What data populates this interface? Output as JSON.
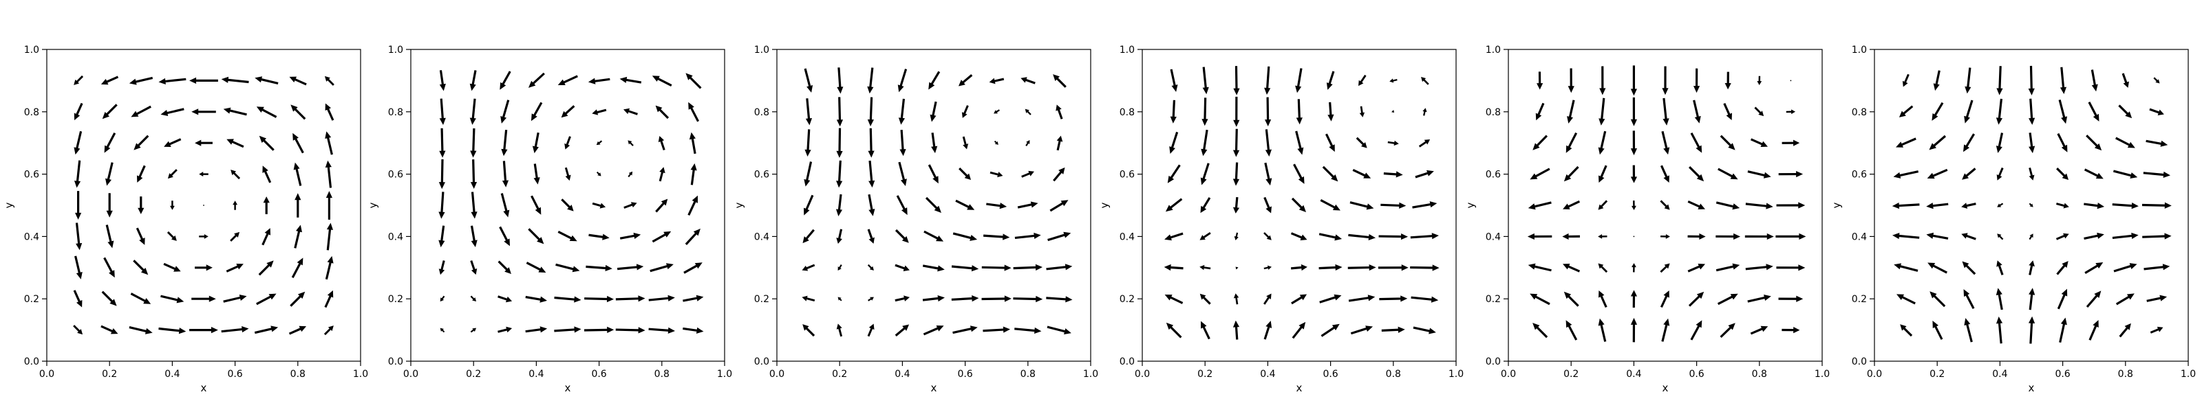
{
  "figure": {
    "background": "#ffffff",
    "axes_color": "#000000",
    "arrow_color": "#000000"
  },
  "chart_data": [
    {
      "type": "quiver",
      "panel": 1,
      "title": "",
      "xlabel": "x",
      "ylabel": "y",
      "xlim": [
        0.0,
        1.0
      ],
      "ylim": [
        0.0,
        1.0
      ],
      "xticks": [
        "0.0",
        "0.2",
        "0.4",
        "0.6",
        "0.8",
        "1.0"
      ],
      "yticks": [
        "0.0",
        "0.2",
        "0.4",
        "0.6",
        "0.8",
        "1.0"
      ],
      "grid": false,
      "legend": "none",
      "x": [
        0.1,
        0.2,
        0.3,
        0.4,
        0.5,
        0.6,
        0.7,
        0.8,
        0.9
      ],
      "y": [
        0.1,
        0.2,
        0.3,
        0.4,
        0.5,
        0.6,
        0.7,
        0.8,
        0.9
      ],
      "vector_field": {
        "u": "sin(pi*x)*cos(pi*y)",
        "v": "-cos(pi*x)*sin(pi*y)",
        "phase": 0.0
      }
    },
    {
      "type": "quiver",
      "panel": 2,
      "title": "",
      "xlabel": "x",
      "ylabel": "y",
      "xlim": [
        0.0,
        1.0
      ],
      "ylim": [
        0.0,
        1.0
      ],
      "xticks": [
        "0.0",
        "0.2",
        "0.4",
        "0.6",
        "0.8",
        "1.0"
      ],
      "yticks": [
        "0.0",
        "0.2",
        "0.4",
        "0.6",
        "0.8",
        "1.0"
      ],
      "grid": false,
      "legend": "none",
      "x": [
        0.1,
        0.2,
        0.3,
        0.4,
        0.5,
        0.6,
        0.7,
        0.8,
        0.9
      ],
      "y": [
        0.1,
        0.2,
        0.3,
        0.4,
        0.5,
        0.6,
        0.7,
        0.8,
        0.9
      ],
      "vector_field": {
        "u": "sin(pi*x + p)*cos(pi*y + p)",
        "v": "-cos(pi*x + p)*sin(pi*y + p)",
        "phase": -0.45
      }
    },
    {
      "type": "quiver",
      "panel": 3,
      "title": "",
      "xlabel": "x",
      "ylabel": "y",
      "xlim": [
        0.0,
        1.0
      ],
      "ylim": [
        0.0,
        1.0
      ],
      "xticks": [
        "0.0",
        "0.2",
        "0.4",
        "0.6",
        "0.8",
        "1.0"
      ],
      "yticks": [
        "0.0",
        "0.2",
        "0.4",
        "0.6",
        "0.8",
        "1.0"
      ],
      "grid": false,
      "legend": "none",
      "x": [
        0.1,
        0.2,
        0.3,
        0.4,
        0.5,
        0.6,
        0.7,
        0.8,
        0.9
      ],
      "y": [
        0.1,
        0.2,
        0.3,
        0.4,
        0.5,
        0.6,
        0.7,
        0.8,
        0.9
      ],
      "vector_field": {
        "u": "sin(pi*x + p)*cos(pi*y + p)",
        "v": "-cos(pi*x + p)*sin(pi*y + p)",
        "phase": -0.75
      }
    },
    {
      "type": "quiver",
      "panel": 4,
      "title": "",
      "xlabel": "x",
      "ylabel": "y",
      "xlim": [
        0.0,
        1.0
      ],
      "ylim": [
        0.0,
        1.0
      ],
      "xticks": [
        "0.0",
        "0.2",
        "0.4",
        "0.6",
        "0.8",
        "1.0"
      ],
      "yticks": [
        "0.0",
        "0.2",
        "0.4",
        "0.6",
        "0.8",
        "1.0"
      ],
      "grid": false,
      "legend": "none",
      "x": [
        0.1,
        0.2,
        0.3,
        0.4,
        0.5,
        0.6,
        0.7,
        0.8,
        0.9
      ],
      "y": [
        0.1,
        0.2,
        0.3,
        0.4,
        0.5,
        0.6,
        0.7,
        0.8,
        0.9
      ],
      "vector_field": {
        "u": "sin(pi*x + p)*cos(pi*y + p)",
        "v": "-cos(pi*x + p)*sin(pi*y + p)",
        "phase": -1.0
      }
    },
    {
      "type": "quiver",
      "panel": 5,
      "title": "",
      "xlabel": "x",
      "ylabel": "y",
      "xlim": [
        0.0,
        1.0
      ],
      "ylim": [
        0.0,
        1.0
      ],
      "xticks": [
        "0.0",
        "0.2",
        "0.4",
        "0.6",
        "0.8",
        "1.0"
      ],
      "yticks": [
        "0.0",
        "0.2",
        "0.4",
        "0.6",
        "0.8",
        "1.0"
      ],
      "grid": false,
      "legend": "none",
      "x": [
        0.1,
        0.2,
        0.3,
        0.4,
        0.5,
        0.6,
        0.7,
        0.8,
        0.9
      ],
      "y": [
        0.1,
        0.2,
        0.3,
        0.4,
        0.5,
        0.6,
        0.7,
        0.8,
        0.9
      ],
      "vector_field": {
        "u": "sin(pi*x + p)*cos(pi*y + p)",
        "v": "-cos(pi*x + p)*sin(pi*y + p)",
        "phase": -1.25
      }
    },
    {
      "type": "quiver",
      "panel": 6,
      "title": "",
      "xlabel": "x",
      "ylabel": "y",
      "xlim": [
        0.0,
        1.0
      ],
      "ylim": [
        0.0,
        1.0
      ],
      "xticks": [
        "0.0",
        "0.2",
        "0.4",
        "0.6",
        "0.8",
        "1.0"
      ],
      "yticks": [
        "0.0",
        "0.2",
        "0.4",
        "0.6",
        "0.8",
        "1.0"
      ],
      "grid": false,
      "legend": "none",
      "x": [
        0.1,
        0.2,
        0.3,
        0.4,
        0.5,
        0.6,
        0.7,
        0.8,
        0.9
      ],
      "y": [
        0.1,
        0.2,
        0.3,
        0.4,
        0.5,
        0.6,
        0.7,
        0.8,
        0.9
      ],
      "vector_field": {
        "u": "sin(pi*x + p)*cos(pi*y + p)",
        "v": "-cos(pi*x + p)*sin(pi*y + p)",
        "phase": -1.45
      }
    }
  ]
}
